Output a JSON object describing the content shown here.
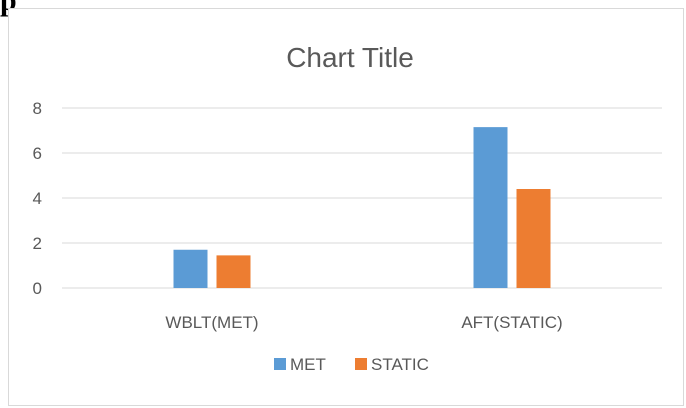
{
  "page_fragment_text": "p",
  "chart_data": {
    "type": "bar",
    "title": "Chart Title",
    "categories": [
      "WBLT(MET)",
      "AFT(STATIC)"
    ],
    "series": [
      {
        "name": "MET",
        "color": "#5b9bd5",
        "values": [
          1.7,
          7.15
        ]
      },
      {
        "name": "STATIC",
        "color": "#ed7d31",
        "values": [
          1.45,
          4.4
        ]
      }
    ],
    "y_ticks": [
      "0",
      "2",
      "4",
      "6",
      "8"
    ],
    "ylim": [
      0,
      8
    ],
    "grid": true,
    "legend_position": "bottom",
    "gridline_color": "#d9d9d9",
    "text_color": "#595959"
  }
}
